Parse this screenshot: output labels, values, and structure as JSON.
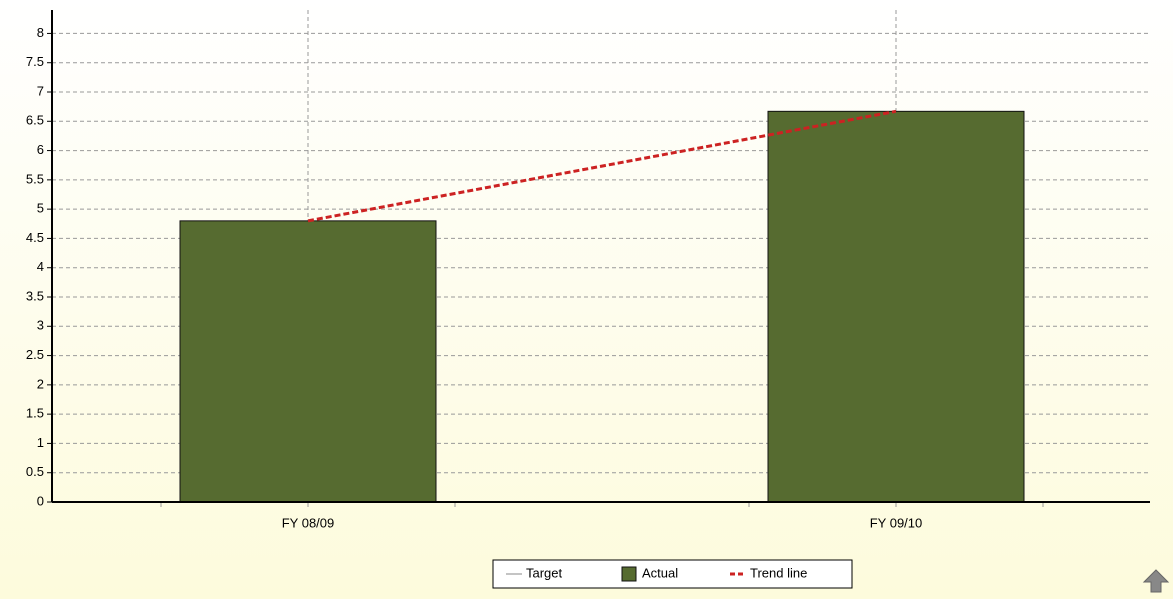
{
  "chart_data": {
    "type": "bar",
    "categories": [
      "FY 08/09",
      "FY 09/10"
    ],
    "series": [
      {
        "name": "Target",
        "color": "#888888",
        "values": [
          null,
          null
        ]
      },
      {
        "name": "Actual",
        "color": "#566b30",
        "values": [
          4.8,
          6.67
        ]
      },
      {
        "name": "Trend line",
        "color": "#cc2222",
        "values": [
          4.8,
          6.67
        ]
      }
    ],
    "ylim": [
      0,
      8.4
    ],
    "yticks": [
      0,
      0.5,
      1,
      1.5,
      2,
      2.5,
      3,
      3.5,
      4,
      4.5,
      5,
      5.5,
      6,
      6.5,
      7,
      7.5,
      8
    ],
    "grid": true,
    "legend": "bottom"
  }
}
